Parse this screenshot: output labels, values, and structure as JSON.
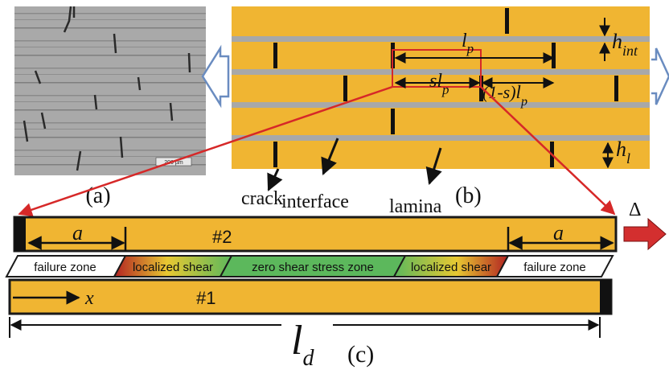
{
  "colors": {
    "lamina": "#F0B532",
    "interface": "#A8A8A8",
    "crack": "#111111",
    "highlight": "#D62828",
    "failure_zone": "#FFFFFF",
    "zero_shear_zone": "#5CB85C",
    "outline": "#1A1A1A",
    "hollow_arrow": "#6A8CC0",
    "load_arrow": "#D32F2F"
  },
  "panel_a": {
    "label": "(a)",
    "scale_bar_text": "200 µm",
    "image": "micrograph-photo"
  },
  "panel_b": {
    "label": "(b)",
    "lp_base": "l",
    "lp_sub": "p",
    "slp_base": "sl",
    "slp_sub": "p",
    "one_minus_s": "(1-s)",
    "one_minus_s_l": "l",
    "one_minus_s_sub": "p",
    "hint_base": "h",
    "hint_sub": "int",
    "hl_base": "h",
    "hl_sub": "l",
    "crack_label": "crack",
    "interface_label": "interface",
    "lamina_label": "lamina"
  },
  "panel_c": {
    "label": "(c)",
    "platelet_top": "#2",
    "platelet_bottom": "#1",
    "a_left": "a",
    "a_right": "a",
    "x_label": "x",
    "ld_base": "l",
    "ld_sub": "d",
    "delta": "Δ",
    "zones": {
      "failure_left": "failure zone",
      "shear_left": "localized shear",
      "zero": "zero shear stress zone",
      "shear_right": "localized shear",
      "failure_right": "failure zone"
    }
  }
}
